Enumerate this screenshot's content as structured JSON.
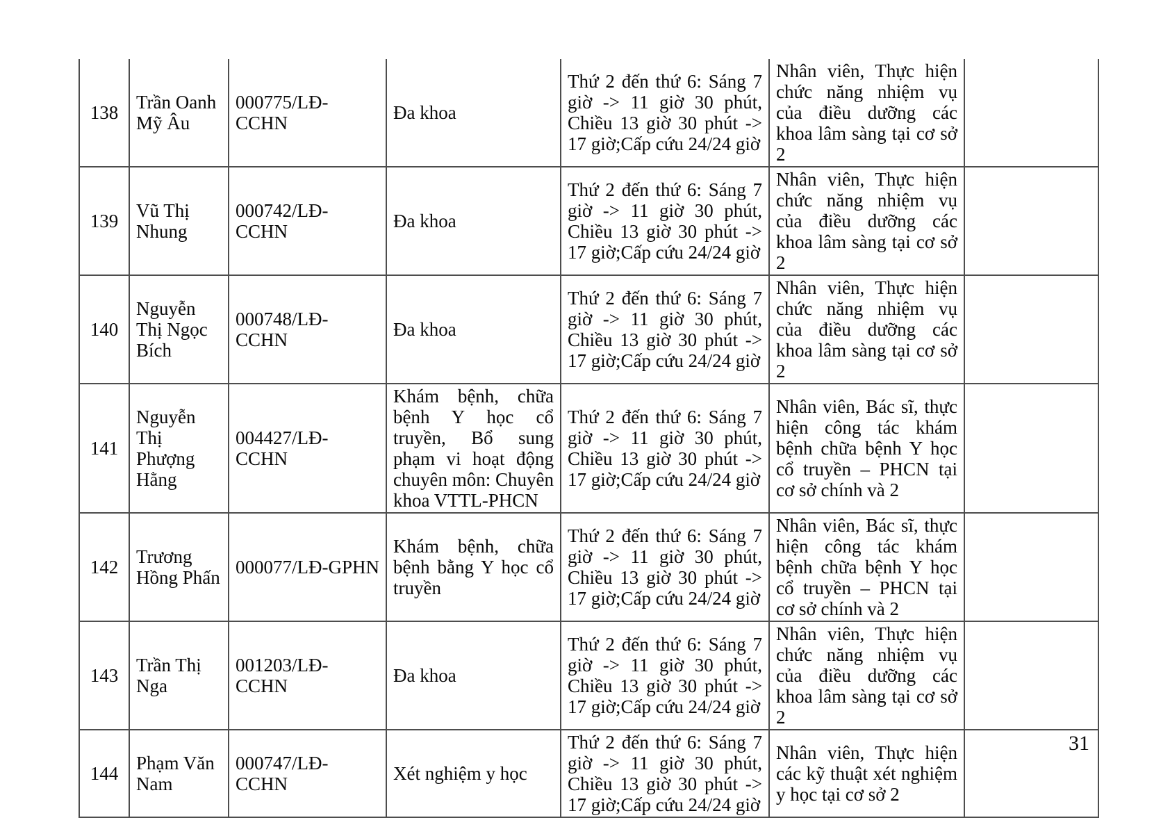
{
  "page": {
    "number": "31"
  },
  "table": {
    "rows": [
      {
        "stt": "138",
        "name": "Trần Oanh Mỹ Âu",
        "license": "000775/LĐ-CCHN",
        "specialty": "Đa khoa",
        "schedule": "Thứ 2 đến thứ 6: Sáng 7 giờ -> 11 giờ 30 phút, Chiều 13 giờ 30 phút -> 17 giờ;Cấp cứu 24/24 giờ",
        "role": "Nhân viên, Thực hiện chức năng nhiệm vụ của điều dưỡng các khoa lâm sàng tại cơ sở 2",
        "note": ""
      },
      {
        "stt": "139",
        "name": "Vũ Thị Nhung",
        "license": "000742/LĐ-CCHN",
        "specialty": "Đa khoa",
        "schedule": "Thứ 2 đến thứ 6: Sáng 7 giờ -> 11 giờ 30 phút, Chiều 13 giờ 30 phút -> 17 giờ;Cấp cứu 24/24 giờ",
        "role": "Nhân viên, Thực hiện chức năng nhiệm vụ của điều dưỡng các khoa lâm sàng tại cơ sở 2",
        "note": ""
      },
      {
        "stt": "140",
        "name": "Nguyễn Thị Ngọc Bích",
        "license": "000748/LĐ-CCHN",
        "specialty": "Đa khoa",
        "schedule": "Thứ 2 đến thứ 6: Sáng 7 giờ -> 11 giờ 30 phút, Chiều 13 giờ 30 phút -> 17 giờ;Cấp cứu 24/24 giờ",
        "role": "Nhân viên, Thực hiện chức năng nhiệm vụ của điều dưỡng các khoa lâm sàng tại cơ sở 2",
        "note": ""
      },
      {
        "stt": "141",
        "name": "Nguyễn Thị Phượng Hằng",
        "license": "004427/LĐ-CCHN",
        "specialty": "Khám bệnh, chữa bệnh Y học cổ truyền, Bổ sung phạm vi hoạt động chuyên môn: Chuyên khoa VTTL-PHCN",
        "schedule": "Thứ 2 đến thứ 6: Sáng 7 giờ -> 11 giờ 30 phút, Chiều 13 giờ 30 phút -> 17 giờ;Cấp cứu 24/24 giờ",
        "role": "Nhân viên, Bác sĩ, thực hiện công tác khám bệnh chữa bệnh Y học cổ truyền – PHCN tại cơ sở chính và 2",
        "note": ""
      },
      {
        "stt": "142",
        "name": "Trương Hồng Phấn",
        "license": "000077/LĐ-GPHN",
        "specialty": "Khám bệnh, chữa bệnh bằng Y học cổ truyền",
        "schedule": "Thứ 2 đến thứ 6: Sáng 7 giờ -> 11 giờ 30 phút, Chiều 13 giờ 30 phút -> 17 giờ;Cấp cứu 24/24 giờ",
        "role": "Nhân viên, Bác sĩ, thực hiện công tác khám bệnh chữa bệnh Y học cổ truyền – PHCN tại cơ sở chính và 2",
        "note": ""
      },
      {
        "stt": "143",
        "name": "Trần Thị Nga",
        "license": "001203/LĐ-CCHN",
        "specialty": "Đa khoa",
        "schedule": "Thứ 2 đến thứ 6: Sáng 7 giờ -> 11 giờ 30 phút, Chiều 13 giờ 30 phút -> 17 giờ;Cấp cứu 24/24 giờ",
        "role": "Nhân viên, Thực hiện chức năng nhiệm vụ của điều dưỡng các khoa lâm sàng tại cơ sở 2",
        "note": ""
      },
      {
        "stt": "144",
        "name": "Phạm Văn Nam",
        "license": "000747/LĐ-CCHN",
        "specialty": "Xét nghiệm y học",
        "schedule": "Thứ 2 đến thứ 6: Sáng 7 giờ -> 11 giờ 30 phút, Chiều 13 giờ 30 phút -> 17 giờ;Cấp cứu 24/24 giờ",
        "role": "Nhân viên, Thực hiện các kỹ thuật xét nghiệm y học tại cơ sở 2",
        "note": ""
      }
    ]
  }
}
